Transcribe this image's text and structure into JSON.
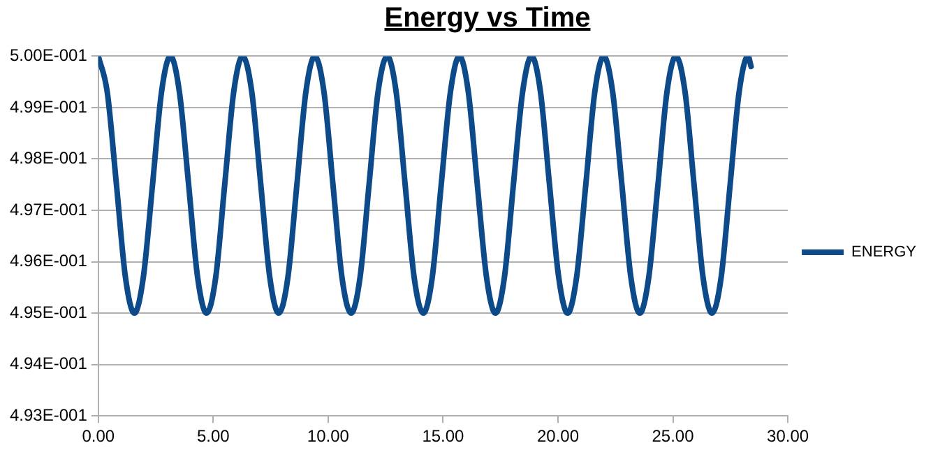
{
  "chart_data": {
    "type": "line",
    "title": "Energy vs Time",
    "x": [
      0,
      0.39,
      0.79,
      1.18,
      1.57,
      1.96,
      2.36,
      2.75,
      3.14,
      3.53,
      3.93,
      4.32,
      4.71,
      5.11,
      5.5,
      5.89,
      6.28,
      6.68,
      7.07,
      7.46,
      7.85,
      8.25,
      8.64,
      9.03,
      9.42,
      9.82,
      10.21,
      10.6,
      11.0,
      11.39,
      11.78,
      12.17,
      12.57,
      12.96,
      13.35,
      13.74,
      14.14,
      14.53,
      14.92,
      15.32,
      15.71,
      16.1,
      16.49,
      16.89,
      17.28,
      17.67,
      18.06,
      18.46,
      18.85,
      19.24,
      19.63,
      20.03,
      20.42,
      20.81,
      21.21,
      21.6,
      21.99,
      22.38,
      22.78,
      23.17,
      23.56,
      23.95,
      24.35,
      24.74,
      25.13,
      25.53,
      25.92,
      26.31,
      26.7,
      27.1,
      27.49,
      27.88,
      28.27,
      28.4
    ],
    "series": [
      {
        "name": "ENERGY",
        "color": "#0d4a8a",
        "values": [
          0.5,
          0.4993,
          0.4975,
          0.4957,
          0.495,
          0.4957,
          0.4975,
          0.4993,
          0.5,
          0.4993,
          0.4975,
          0.4957,
          0.495,
          0.4957,
          0.4975,
          0.4993,
          0.5,
          0.4993,
          0.4975,
          0.4957,
          0.495,
          0.4957,
          0.4975,
          0.4993,
          0.5,
          0.4993,
          0.4975,
          0.4957,
          0.495,
          0.4957,
          0.4975,
          0.4993,
          0.5,
          0.4993,
          0.4975,
          0.4957,
          0.495,
          0.4957,
          0.4975,
          0.4993,
          0.5,
          0.4993,
          0.4975,
          0.4957,
          0.495,
          0.4957,
          0.4975,
          0.4993,
          0.5,
          0.4993,
          0.4975,
          0.4957,
          0.495,
          0.4957,
          0.4975,
          0.4993,
          0.5,
          0.4993,
          0.4975,
          0.4957,
          0.495,
          0.4957,
          0.4975,
          0.4993,
          0.5,
          0.4993,
          0.4975,
          0.4957,
          0.495,
          0.4957,
          0.4975,
          0.4993,
          0.5,
          0.4998
        ]
      }
    ],
    "xlim": [
      0,
      30
    ],
    "xticks": [
      {
        "value": 0,
        "label": "0.00"
      },
      {
        "value": 5,
        "label": "5.00"
      },
      {
        "value": 10,
        "label": "10.00"
      },
      {
        "value": 15,
        "label": "15.00"
      },
      {
        "value": 20,
        "label": "20.00"
      },
      {
        "value": 25,
        "label": "25.00"
      },
      {
        "value": 30,
        "label": "30.00"
      }
    ],
    "ylim": [
      0.493,
      0.5
    ],
    "yticks": [
      {
        "value": 0.493,
        "label": "4.93E-001"
      },
      {
        "value": 0.494,
        "label": "4.94E-001"
      },
      {
        "value": 0.495,
        "label": "4.95E-001"
      },
      {
        "value": 0.496,
        "label": "4.96E-001"
      },
      {
        "value": 0.497,
        "label": "4.97E-001"
      },
      {
        "value": 0.498,
        "label": "4.98E-001"
      },
      {
        "value": 0.499,
        "label": "4.99E-001"
      },
      {
        "value": 0.5,
        "label": "5.00E-001"
      }
    ],
    "grid": "y",
    "legend": "right",
    "marker": "none",
    "line_style": "solid"
  }
}
